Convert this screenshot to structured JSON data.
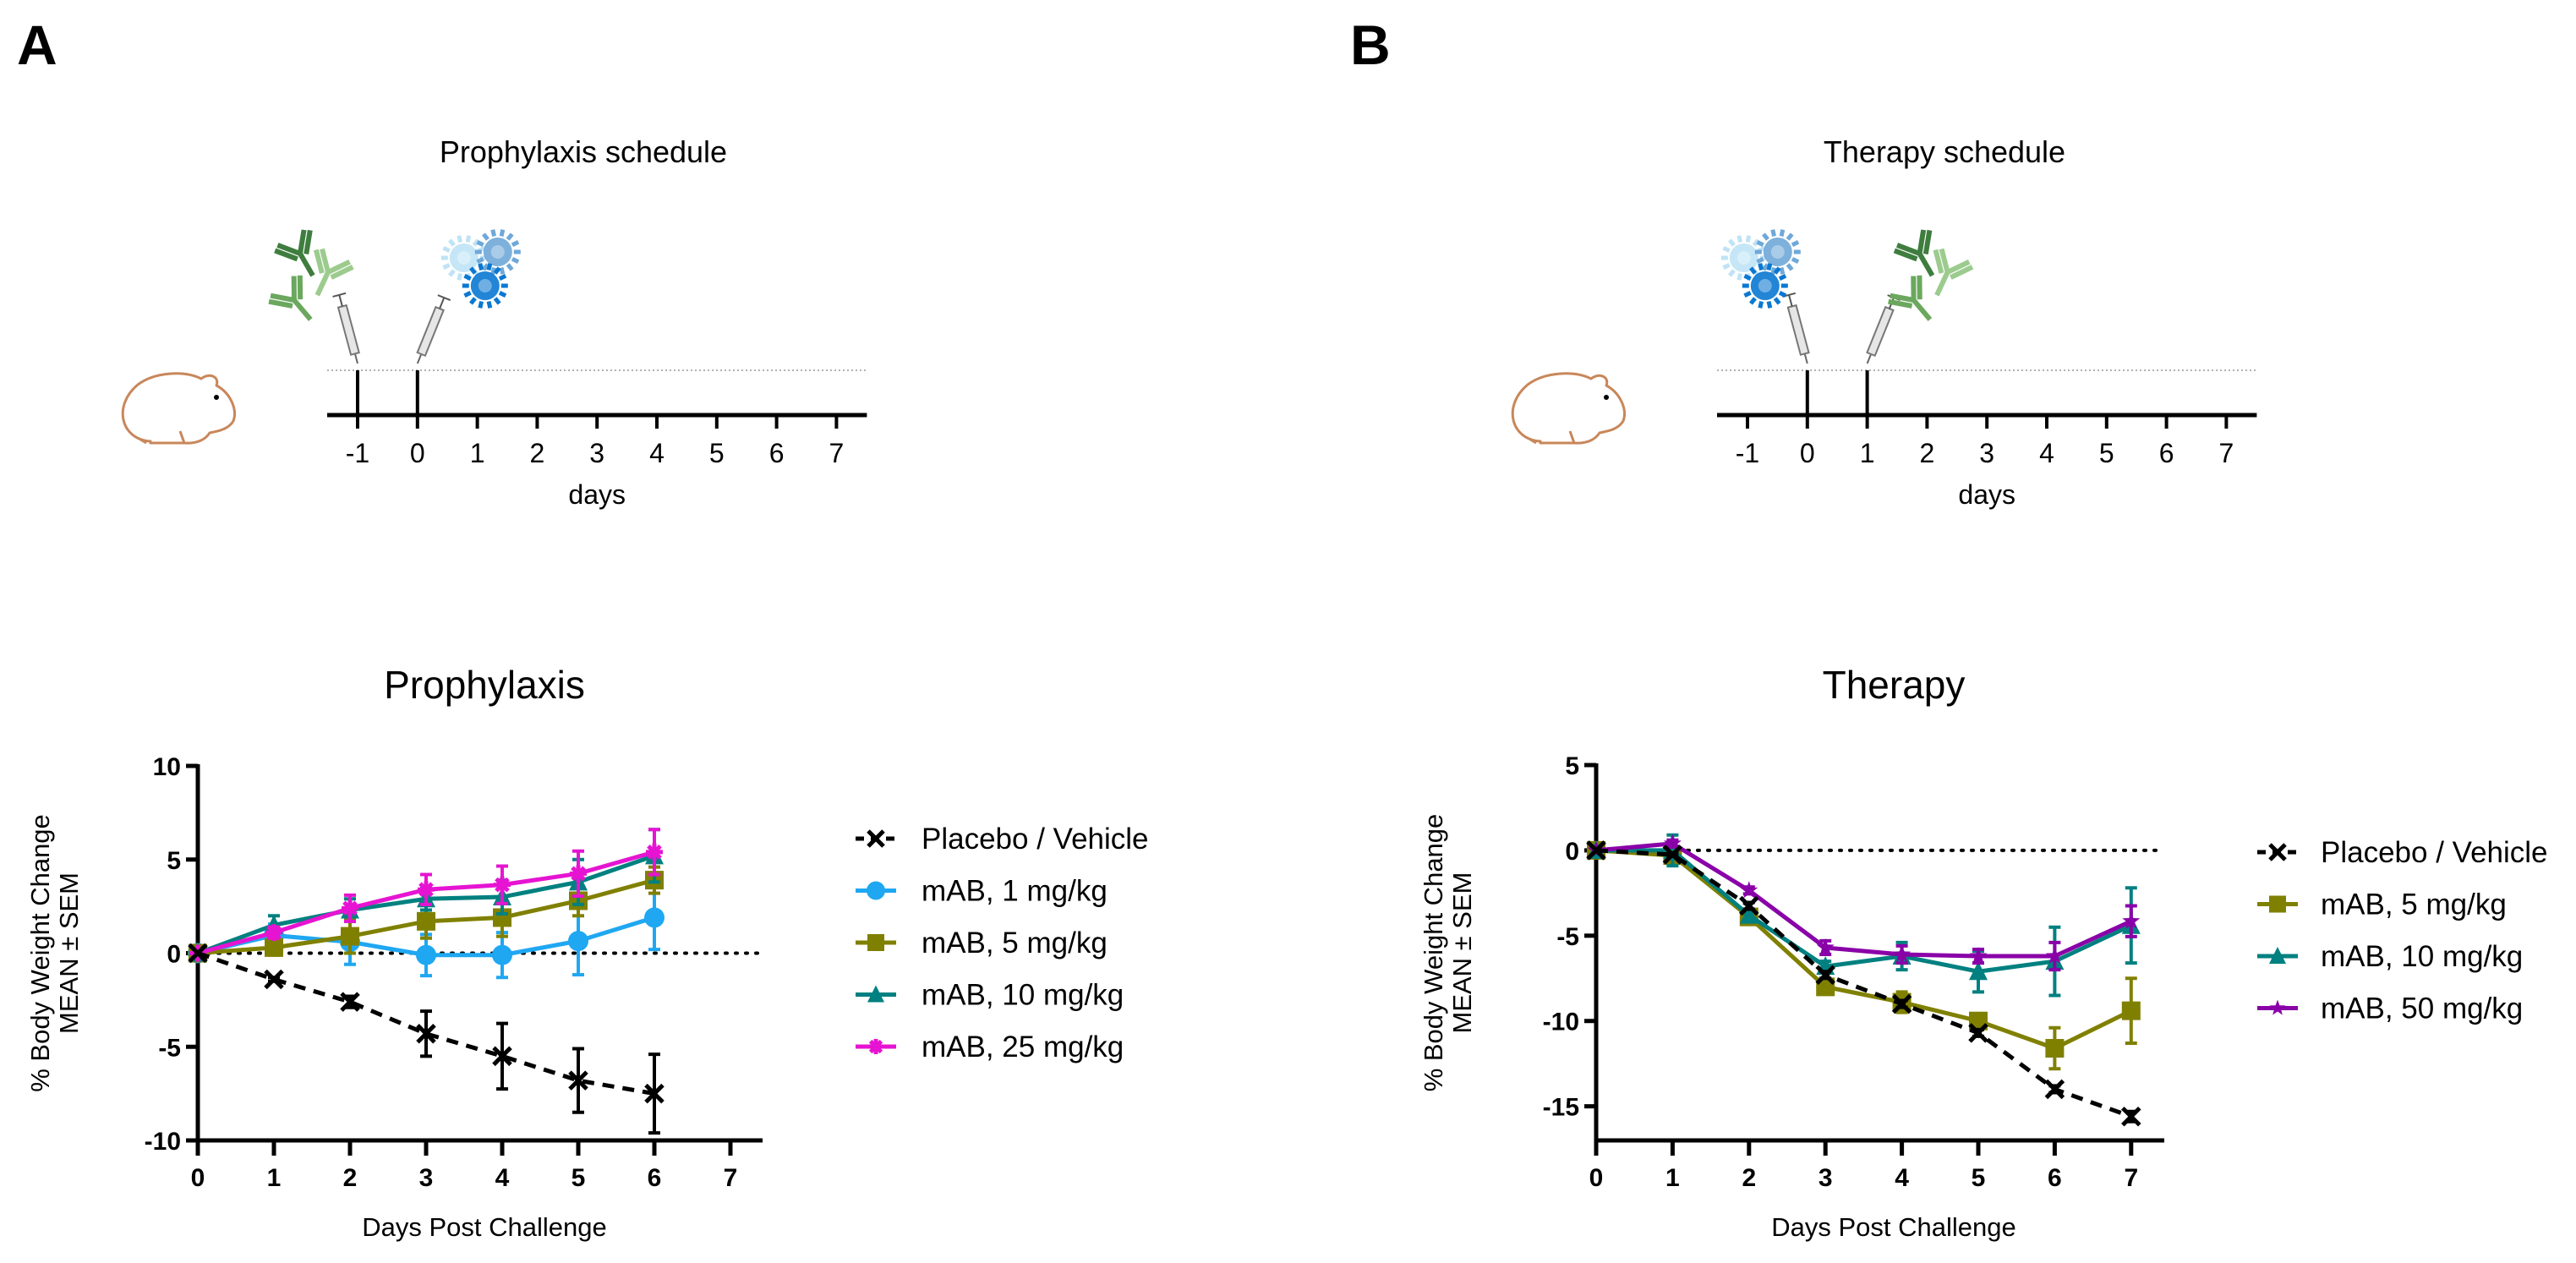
{
  "panels": [
    {
      "letter": "A",
      "schedule_title": "Prophylaxis schedule",
      "timeline_ticks": [
        "-1",
        "0",
        "1",
        "2",
        "3",
        "4",
        "5",
        "6",
        "7"
      ],
      "timeline_label": "days",
      "injections": [
        {
          "day": -1,
          "agent": "antibody"
        },
        {
          "day": 0,
          "agent": "virus"
        }
      ]
    },
    {
      "letter": "B",
      "schedule_title": "Therapy schedule",
      "timeline_ticks": [
        "-1",
        "0",
        "1",
        "2",
        "3",
        "4",
        "5",
        "6",
        "7"
      ],
      "timeline_label": "days",
      "injections": [
        {
          "day": 0,
          "agent": "virus"
        },
        {
          "day": 1,
          "agent": "antibody"
        }
      ]
    }
  ],
  "chart_data": [
    {
      "type": "line",
      "title": "Prophylaxis",
      "xlabel": "Days Post Challenge",
      "ylabel": [
        "% Body Weight Change",
        "MEAN ± SEM"
      ],
      "xlim": [
        0,
        7
      ],
      "ylim": [
        -10,
        10
      ],
      "xticks": [
        "0",
        "1",
        "2",
        "3",
        "4",
        "5",
        "6",
        "7"
      ],
      "yticks": [
        "10",
        "5",
        "0",
        "-5",
        "-10"
      ],
      "reference_line": 0,
      "legend_position": "right",
      "series": [
        {
          "name": "Placebo / Vehicle",
          "color": "#000000",
          "marker": "x",
          "dashed": true,
          "x": [
            0,
            1,
            2,
            3,
            4,
            5,
            6
          ],
          "y": [
            0,
            -1.4,
            -2.6,
            -4.3,
            -5.5,
            -6.8,
            -7.5
          ],
          "sem": [
            0,
            0.1,
            0.3,
            1.2,
            1.75,
            1.7,
            2.1
          ]
        },
        {
          "name": "mAB, 1 mg/kg",
          "color": "#1FA7F2",
          "marker": "circle",
          "dashed": false,
          "x": [
            0,
            1,
            2,
            3,
            4,
            5,
            6
          ],
          "y": [
            0,
            0.95,
            0.6,
            -0.1,
            -0.1,
            0.65,
            1.9
          ],
          "sem": [
            0,
            0.6,
            1.2,
            1.1,
            1.2,
            1.8,
            1.7
          ]
        },
        {
          "name": "mAB, 5 mg/kg",
          "color": "#808000",
          "marker": "square",
          "dashed": false,
          "x": [
            0,
            1,
            2,
            3,
            4,
            5,
            6
          ],
          "y": [
            0,
            0.3,
            0.9,
            1.7,
            1.9,
            2.8,
            3.9
          ],
          "sem": [
            0,
            0.4,
            0.9,
            0.9,
            1.0,
            0.8,
            0.7
          ]
        },
        {
          "name": "mAB, 10 mg/kg",
          "color": "#008080",
          "marker": "triangle",
          "dashed": false,
          "x": [
            0,
            1,
            2,
            3,
            4,
            5,
            6
          ],
          "y": [
            0,
            1.5,
            2.3,
            2.9,
            3.0,
            3.8,
            5.2
          ],
          "sem": [
            0,
            0.5,
            0.6,
            0.6,
            0.9,
            1.2,
            1.4
          ]
        },
        {
          "name": "mAB, 25 mg/kg",
          "color": "#E614D2",
          "marker": "asterisk",
          "dashed": false,
          "x": [
            0,
            1,
            2,
            3,
            4,
            5,
            6
          ],
          "y": [
            0,
            1.1,
            2.4,
            3.4,
            3.65,
            4.25,
            5.4
          ],
          "sem": [
            0,
            0.3,
            0.7,
            0.8,
            1.0,
            1.2,
            1.2
          ]
        }
      ]
    },
    {
      "type": "line",
      "title": "Therapy",
      "xlabel": "Days Post Challenge",
      "ylabel": [
        "% Body Weight Change",
        "MEAN ± SEM"
      ],
      "xlim": [
        0,
        7
      ],
      "ylim": [
        -17,
        5
      ],
      "xticks": [
        "0",
        "1",
        "2",
        "3",
        "4",
        "5",
        "6",
        "7"
      ],
      "yticks": [
        "5",
        "0",
        "-5",
        "-10",
        "-15"
      ],
      "reference_line": 0,
      "legend_position": "right",
      "series": [
        {
          "name": "Placebo / Vehicle",
          "color": "#000000",
          "marker": "x",
          "dashed": true,
          "x": [
            0,
            1,
            2,
            3,
            4,
            5,
            6,
            7
          ],
          "y": [
            0,
            -0.25,
            -3.25,
            -7.3,
            -9.0,
            -10.7,
            -14.0,
            -15.6
          ],
          "sem": [
            0,
            0.1,
            0.2,
            0.2,
            0.2,
            0.2,
            0.2,
            0.3
          ]
        },
        {
          "name": "mAB, 5 mg/kg",
          "color": "#808000",
          "marker": "square",
          "dashed": false,
          "x": [
            0,
            1,
            2,
            3,
            4,
            5,
            6,
            7
          ],
          "y": [
            0,
            -0.3,
            -3.9,
            -8.0,
            -8.9,
            -10.0,
            -11.6,
            -9.4
          ],
          "sem": [
            0,
            0.2,
            0.3,
            0.3,
            0.6,
            0.3,
            1.2,
            1.9
          ]
        },
        {
          "name": "mAB, 10 mg/kg",
          "color": "#008080",
          "marker": "triangle",
          "dashed": false,
          "x": [
            0,
            1,
            2,
            3,
            4,
            5,
            6,
            7
          ],
          "y": [
            0,
            0,
            -3.8,
            -6.8,
            -6.2,
            -7.1,
            -6.5,
            -4.4
          ],
          "sem": [
            0,
            0.9,
            0.2,
            0.3,
            0.8,
            1.2,
            2.0,
            2.2
          ]
        },
        {
          "name": "mAB, 50 mg/kg",
          "color": "#8A00A8",
          "marker": "star",
          "dashed": false,
          "x": [
            0,
            1,
            2,
            3,
            4,
            5,
            6,
            7
          ],
          "y": [
            0,
            0.4,
            -2.35,
            -5.7,
            -6.1,
            -6.2,
            -6.2,
            -4.15
          ],
          "sem": [
            0,
            0.2,
            0.2,
            0.4,
            0.5,
            0.4,
            0.8,
            0.9
          ]
        }
      ]
    }
  ]
}
